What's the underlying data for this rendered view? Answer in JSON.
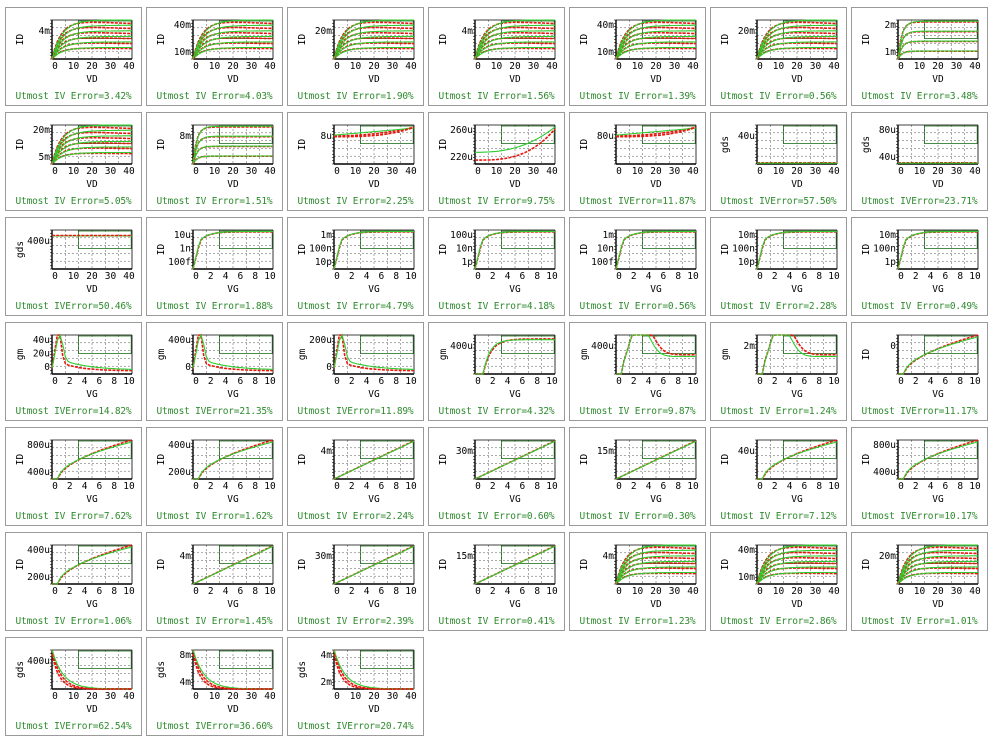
{
  "colors": {
    "measured": "#e8160c",
    "simulated": "#2ecc2e",
    "frame": "#1f6e1f",
    "error_text": "#2e8b2e"
  },
  "cells": [
    {
      "kind": "vd_id",
      "ylabel": "ID",
      "yticks": [
        "4m"
      ],
      "xlabel": "VD",
      "xticks": [
        "0",
        "10",
        "20",
        "30",
        "40"
      ],
      "error_text": "Utmost IV Error=3.42%"
    },
    {
      "kind": "vd_id",
      "ylabel": "ID",
      "yticks": [
        "40m",
        "10m"
      ],
      "xlabel": "VD",
      "xticks": [
        "0",
        "10",
        "20",
        "30",
        "40"
      ],
      "error_text": "Utmost IV Error=4.03%"
    },
    {
      "kind": "vd_id",
      "ylabel": "ID",
      "yticks": [
        "20m"
      ],
      "xlabel": "VD",
      "xticks": [
        "0",
        "10",
        "20",
        "30",
        "40"
      ],
      "error_text": "Utmost IV Error=1.90%"
    },
    {
      "kind": "vd_id",
      "ylabel": "ID",
      "yticks": [
        "4m"
      ],
      "xlabel": "VD",
      "xticks": [
        "0",
        "10",
        "20",
        "30",
        "40"
      ],
      "error_text": "Utmost IV Error=1.56%"
    },
    {
      "kind": "vd_id",
      "ylabel": "ID",
      "yticks": [
        "40m",
        "10m"
      ],
      "xlabel": "VD",
      "xticks": [
        "0",
        "10",
        "20",
        "30",
        "40"
      ],
      "error_text": "Utmost IV Error=1.39%"
    },
    {
      "kind": "vd_id",
      "ylabel": "ID",
      "yticks": [
        "20m"
      ],
      "xlabel": "VD",
      "xticks": [
        "0",
        "10",
        "20",
        "30",
        "40"
      ],
      "error_text": "Utmost IV Error=0.56%"
    },
    {
      "kind": "vd_id_flat",
      "ylabel": "ID",
      "yticks": [
        "2m",
        "1m"
      ],
      "xlabel": "VD",
      "xticks": [
        "0",
        "10",
        "20",
        "30",
        "40"
      ],
      "error_text": "Utmost IV Error=3.48%"
    },
    {
      "kind": "vd_id",
      "ylabel": "ID",
      "yticks": [
        "20m",
        "5m"
      ],
      "xlabel": "VD",
      "xticks": [
        "0",
        "10",
        "20",
        "30",
        "40"
      ],
      "error_text": "Utmost IV Error=5.05%"
    },
    {
      "kind": "vd_id_flat",
      "ylabel": "ID",
      "yticks": [
        "8m"
      ],
      "xlabel": "VD",
      "xticks": [
        "0",
        "10",
        "20",
        "30",
        "40"
      ],
      "error_text": "Utmost IV Error=1.51%"
    },
    {
      "kind": "vd_rise",
      "ylabel": "ID",
      "yticks": [
        "8u"
      ],
      "xlabel": "VD",
      "xticks": [
        "0",
        "10",
        "20",
        "30",
        "40"
      ],
      "error_text": "Utmost IV Error=2.25%"
    },
    {
      "kind": "vd_curve",
      "ylabel": "ID",
      "yticks": [
        "260u",
        "220u"
      ],
      "xlabel": "VD",
      "xticks": [
        "0",
        "10",
        "20",
        "30",
        "40"
      ],
      "error_text": "Utmost IV Error=9.75%"
    },
    {
      "kind": "vd_rise",
      "ylabel": "ID",
      "yticks": [
        "80u"
      ],
      "xlabel": "VD",
      "xticks": [
        "0",
        "10",
        "20",
        "30",
        "40"
      ],
      "error_text": "Utmost IVError=11.87%"
    },
    {
      "kind": "gds_flat",
      "ylabel": "gds",
      "yticks": [
        "40u"
      ],
      "xlabel": "VD",
      "xticks": [
        "0",
        "10",
        "20",
        "30",
        "40"
      ],
      "error_text": "Utmost IVError=57.50%"
    },
    {
      "kind": "gds_flat",
      "ylabel": "gds",
      "yticks": [
        "80u",
        "40u"
      ],
      "xlabel": "VD",
      "xticks": [
        "0",
        "10",
        "20",
        "30",
        "40"
      ],
      "error_text": "Utmost IVError=23.71%"
    },
    {
      "kind": "gds_line",
      "ylabel": "gds",
      "yticks": [
        "400u"
      ],
      "xlabel": "VD",
      "xticks": [
        "0",
        "10",
        "20",
        "30",
        "40"
      ],
      "error_text": "Utmost IVError=50.46%"
    },
    {
      "kind": "vg_log",
      "ylabel": "ID",
      "yticks": [
        "10u",
        "1n",
        "100f"
      ],
      "xlabel": "VG",
      "xticks": [
        "0",
        "2",
        "4",
        "6",
        "8",
        "10"
      ],
      "error_text": "Utmost IV Error=1.88%"
    },
    {
      "kind": "vg_log",
      "ylabel": "ID",
      "yticks": [
        "1m",
        "100n",
        "10p"
      ],
      "xlabel": "VG",
      "xticks": [
        "0",
        "2",
        "4",
        "6",
        "8",
        "10"
      ],
      "error_text": "Utmost IV Error=4.79%"
    },
    {
      "kind": "vg_log",
      "ylabel": "ID",
      "yticks": [
        "100u",
        "10n",
        "1p"
      ],
      "xlabel": "VG",
      "xticks": [
        "0",
        "2",
        "4",
        "6",
        "8",
        "10"
      ],
      "error_text": "Utmost IV Error=4.18%"
    },
    {
      "kind": "vg_log",
      "ylabel": "ID",
      "yticks": [
        "1m",
        "10n",
        "100f"
      ],
      "xlabel": "VG",
      "xticks": [
        "0",
        "2",
        "4",
        "6",
        "8",
        "10"
      ],
      "error_text": "Utmost IV Error=0.56%"
    },
    {
      "kind": "vg_log",
      "ylabel": "ID",
      "yticks": [
        "10m",
        "100n",
        "10p"
      ],
      "xlabel": "VG",
      "xticks": [
        "0",
        "2",
        "4",
        "6",
        "8",
        "10"
      ],
      "error_text": "Utmost IV Error=2.28%"
    },
    {
      "kind": "vg_log",
      "ylabel": "ID",
      "yticks": [
        "10m",
        "100n",
        "1p"
      ],
      "xlabel": "VG",
      "xticks": [
        "0",
        "2",
        "4",
        "6",
        "8",
        "10"
      ],
      "error_text": "Utmost IV Error=0.49%"
    },
    {
      "kind": "gm_peak",
      "ylabel": "gm",
      "yticks": [
        "40u",
        "20u",
        "0"
      ],
      "xlabel": "VG",
      "xticks": [
        "0",
        "2",
        "4",
        "6",
        "8",
        "10"
      ],
      "error_text": "Utmost IVError=14.82%"
    },
    {
      "kind": "gm_peak",
      "ylabel": "gm",
      "yticks": [
        "400u",
        "0"
      ],
      "xlabel": "VG",
      "xticks": [
        "0",
        "2",
        "4",
        "6",
        "8",
        "10"
      ],
      "error_text": "Utmost IVError=21.35%"
    },
    {
      "kind": "gm_peak",
      "ylabel": "gm",
      "yticks": [
        "200u",
        "0"
      ],
      "xlabel": "VG",
      "xticks": [
        "0",
        "2",
        "4",
        "6",
        "8",
        "10"
      ],
      "error_text": "Utmost IVError=11.89%"
    },
    {
      "kind": "gm_plateau",
      "ylabel": "gm",
      "yticks": [
        "400u"
      ],
      "xlabel": "VG",
      "xticks": [
        "0",
        "2",
        "4",
        "6",
        "8",
        "10"
      ],
      "error_text": "Utmost IV Error=4.32%"
    },
    {
      "kind": "gm_hump",
      "ylabel": "gm",
      "yticks": [
        "400u"
      ],
      "xlabel": "VG",
      "xticks": [
        "0",
        "2",
        "4",
        "6",
        "8",
        "10"
      ],
      "error_text": "Utmost IV Error=9.87%"
    },
    {
      "kind": "gm_hump",
      "ylabel": "gm",
      "yticks": [
        "2m"
      ],
      "xlabel": "VG",
      "xticks": [
        "0",
        "2",
        "4",
        "6",
        "8",
        "10"
      ],
      "error_text": "Utmost IV Error=1.24%"
    },
    {
      "kind": "vg_sat",
      "ylabel": "ID",
      "yticks": [
        "0"
      ],
      "xlabel": "VG",
      "xticks": [
        "0",
        "2",
        "4",
        "6",
        "8",
        "10"
      ],
      "error_text": "Utmost IVError=11.17%"
    },
    {
      "kind": "vg_sat",
      "ylabel": "ID",
      "yticks": [
        "800u",
        "400u"
      ],
      "xlabel": "VG",
      "xticks": [
        "0",
        "2",
        "4",
        "6",
        "8",
        "10"
      ],
      "error_text": "Utmost IV Error=7.62%"
    },
    {
      "kind": "vg_sat",
      "ylabel": "ID",
      "yticks": [
        "400u",
        "200u"
      ],
      "xlabel": "VG",
      "xticks": [
        "0",
        "2",
        "4",
        "6",
        "8",
        "10"
      ],
      "error_text": "Utmost IV Error=1.62%"
    },
    {
      "kind": "vg_linear",
      "ylabel": "ID",
      "yticks": [
        "4m"
      ],
      "xlabel": "VG",
      "xticks": [
        "0",
        "2",
        "4",
        "6",
        "8",
        "10"
      ],
      "error_text": "Utmost IV Error=2.24%"
    },
    {
      "kind": "vg_linear",
      "ylabel": "ID",
      "yticks": [
        "30m"
      ],
      "xlabel": "VG",
      "xticks": [
        "0",
        "2",
        "4",
        "6",
        "8",
        "10"
      ],
      "error_text": "Utmost IV Error=0.60%"
    },
    {
      "kind": "vg_linear",
      "ylabel": "ID",
      "yticks": [
        "15m"
      ],
      "xlabel": "VG",
      "xticks": [
        "0",
        "2",
        "4",
        "6",
        "8",
        "10"
      ],
      "error_text": "Utmost IV Error=0.30%"
    },
    {
      "kind": "vg_sat",
      "ylabel": "ID",
      "yticks": [
        "40u"
      ],
      "xlabel": "VG",
      "xticks": [
        "0",
        "2",
        "4",
        "6",
        "8",
        "10"
      ],
      "error_text": "Utmost IV Error=7.12%"
    },
    {
      "kind": "vg_sat",
      "ylabel": "ID",
      "yticks": [
        "800u",
        "400u"
      ],
      "xlabel": "VG",
      "xticks": [
        "0",
        "2",
        "4",
        "6",
        "8",
        "10"
      ],
      "error_text": "Utmost IVError=10.17%"
    },
    {
      "kind": "vg_sat",
      "ylabel": "ID",
      "yticks": [
        "400u",
        "200u"
      ],
      "xlabel": "VG",
      "xticks": [
        "0",
        "2",
        "4",
        "6",
        "8",
        "10"
      ],
      "error_text": "Utmost IV Error=1.06%"
    },
    {
      "kind": "vg_linear",
      "ylabel": "ID",
      "yticks": [
        "4m"
      ],
      "xlabel": "VG",
      "xticks": [
        "0",
        "2",
        "4",
        "6",
        "8",
        "10"
      ],
      "error_text": "Utmost IV Error=1.45%"
    },
    {
      "kind": "vg_linear",
      "ylabel": "ID",
      "yticks": [
        "30m"
      ],
      "xlabel": "VG",
      "xticks": [
        "0",
        "2",
        "4",
        "6",
        "8",
        "10"
      ],
      "error_text": "Utmost IV Error=2.39%"
    },
    {
      "kind": "vg_linear",
      "ylabel": "ID",
      "yticks": [
        "15m"
      ],
      "xlabel": "VG",
      "xticks": [
        "0",
        "2",
        "4",
        "6",
        "8",
        "10"
      ],
      "error_text": "Utmost IV Error=0.41%"
    },
    {
      "kind": "vd_id",
      "ylabel": "ID",
      "yticks": [
        "4m"
      ],
      "xlabel": "VD",
      "xticks": [
        "0",
        "10",
        "20",
        "30",
        "40"
      ],
      "error_text": "Utmost IV Error=1.23%"
    },
    {
      "kind": "vd_id",
      "ylabel": "ID",
      "yticks": [
        "40m",
        "10m"
      ],
      "xlabel": "VD",
      "xticks": [
        "0",
        "10",
        "20",
        "30",
        "40"
      ],
      "error_text": "Utmost IV Error=2.86%"
    },
    {
      "kind": "vd_id",
      "ylabel": "ID",
      "yticks": [
        "20m"
      ],
      "xlabel": "VD",
      "xticks": [
        "0",
        "10",
        "20",
        "30",
        "40"
      ],
      "error_text": "Utmost IV Error=1.01%"
    },
    {
      "kind": "gds_decay",
      "ylabel": "gds",
      "yticks": [
        "400u"
      ],
      "xlabel": "VD",
      "xticks": [
        "0",
        "10",
        "20",
        "30",
        "40"
      ],
      "error_text": "Utmost IVError=62.54%"
    },
    {
      "kind": "gds_decay",
      "ylabel": "gds",
      "yticks": [
        "8m",
        "4m"
      ],
      "xlabel": "VD",
      "xticks": [
        "0",
        "10",
        "20",
        "30",
        "40"
      ],
      "error_text": "Utmost IVError=36.60%"
    },
    {
      "kind": "gds_decay",
      "ylabel": "gds",
      "yticks": [
        "4m",
        "2m"
      ],
      "xlabel": "VD",
      "xticks": [
        "0",
        "10",
        "20",
        "30",
        "40"
      ],
      "error_text": "Utmost IVError=20.74%"
    }
  ]
}
